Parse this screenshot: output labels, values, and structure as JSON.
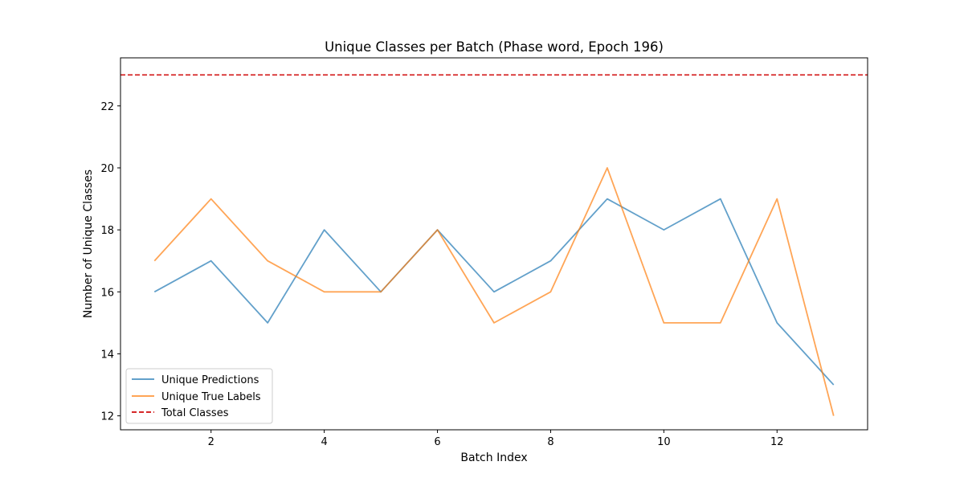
{
  "chart_data": {
    "type": "line",
    "title": "Unique Classes per Batch (Phase word, Epoch 196)",
    "xlabel": "Batch Index",
    "ylabel": "Number of Unique Classes",
    "x": [
      1,
      2,
      3,
      4,
      5,
      6,
      7,
      8,
      9,
      10,
      11,
      12,
      13
    ],
    "xlim": [
      0.4,
      13.6
    ],
    "ylim": [
      11.55,
      23.55
    ],
    "xticks": [
      2,
      4,
      6,
      8,
      10,
      12
    ],
    "yticks": [
      12,
      14,
      16,
      18,
      20,
      22
    ],
    "series": [
      {
        "name": "Unique Predictions",
        "color": "#1f77b4",
        "values": [
          16,
          17,
          15,
          18,
          16,
          18,
          16,
          17,
          19,
          18,
          19,
          15,
          13
        ]
      },
      {
        "name": "Unique True Labels",
        "color": "#ff7f0e",
        "values": [
          17,
          19,
          17,
          16,
          16,
          18,
          15,
          16,
          20,
          15,
          15,
          19,
          12
        ]
      }
    ],
    "reference_line": {
      "name": "Total Classes",
      "value": 23,
      "color": "#d62728",
      "style": "dashed"
    },
    "legend": "lower-left",
    "grid": false
  }
}
